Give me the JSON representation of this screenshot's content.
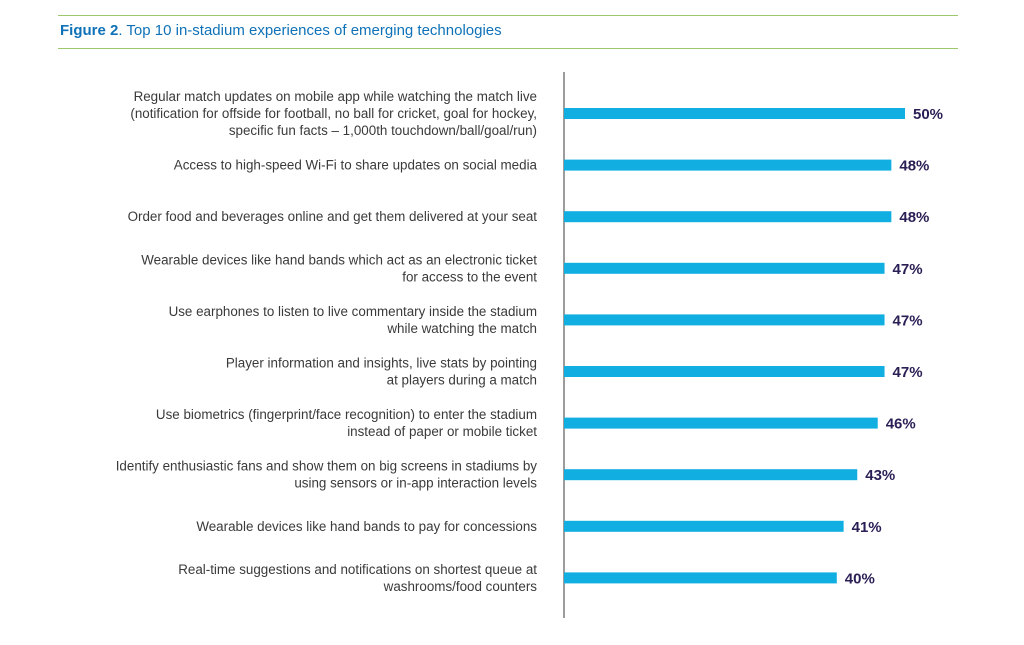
{
  "figure": {
    "number": "Figure 2",
    "title": ". Top 10 in-stadium experiences of emerging technologies"
  },
  "colors": {
    "bar": "#11aee2",
    "title": "#0f72b8",
    "value_label": "#2b1e55",
    "rule": "#9cc76a"
  },
  "chart_data": {
    "type": "bar",
    "orientation": "horizontal",
    "title": "Figure 2. Top 10 in-stadium experiences of emerging technologies",
    "categories": [
      [
        "Regular match updates on mobile app while watching the match live",
        "(notification for offside for football, no ball for cricket, goal for hockey,",
        "specific fun facts – 1,000th touchdown/ball/goal/run)"
      ],
      [
        "Access to high-speed Wi-Fi to share updates on social media"
      ],
      [
        "Order food and beverages online and get them delivered at your seat"
      ],
      [
        "Wearable devices like hand bands which act as an electronic ticket",
        "for access to the event"
      ],
      [
        "Use earphones to listen to live commentary inside the stadium",
        "while watching the match"
      ],
      [
        "Player information and insights, live stats by pointing",
        "at players during a match"
      ],
      [
        "Use biometrics (fingerprint/face recognition) to enter the stadium",
        "instead of paper or mobile ticket"
      ],
      [
        "Identify enthusiastic fans and show them on big screens in stadiums by",
        "using sensors or in-app interaction levels"
      ],
      [
        "Wearable devices like hand bands to pay for concessions"
      ],
      [
        "Real-time suggestions and notifications on shortest queue at",
        "washrooms/food counters"
      ]
    ],
    "values": [
      50,
      48,
      48,
      47,
      47,
      47,
      46,
      43,
      41,
      40
    ],
    "value_labels": [
      "50%",
      "48%",
      "48%",
      "47%",
      "47%",
      "47%",
      "46%",
      "43%",
      "41%",
      "40%"
    ],
    "xlim": [
      0,
      50
    ],
    "grid": false,
    "legend": "none"
  }
}
